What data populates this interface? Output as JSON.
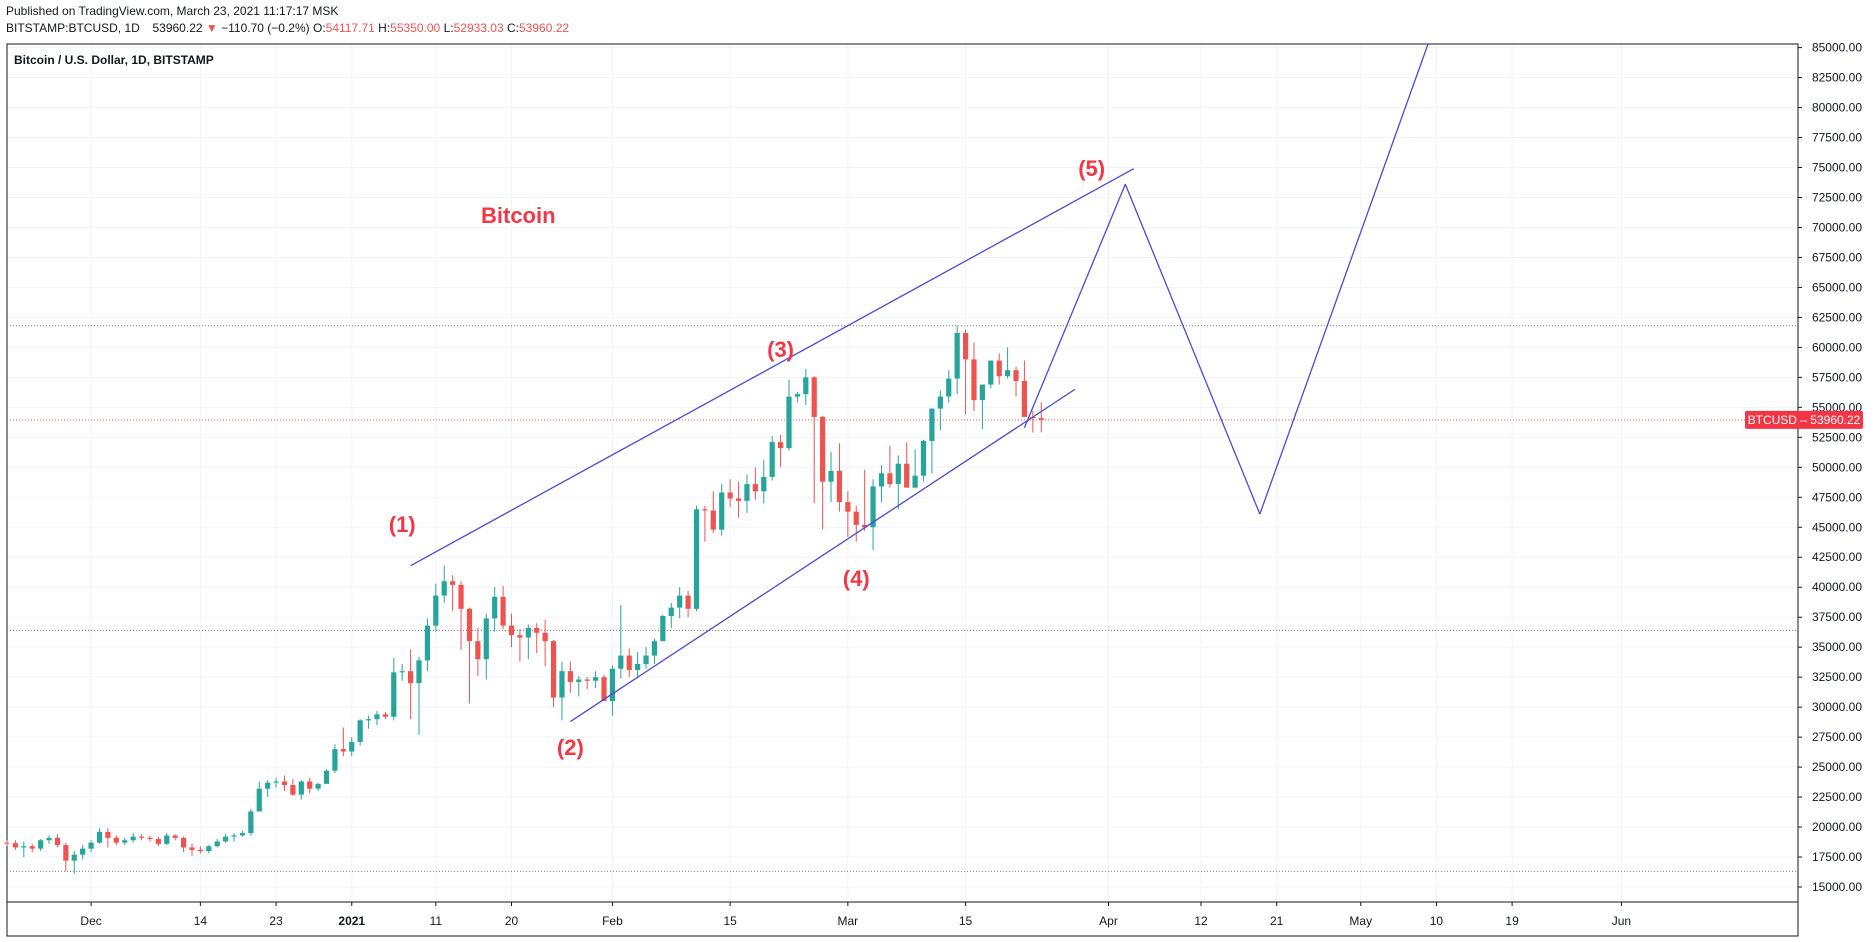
{
  "header": {
    "published": "Published on TradingView.com, March 23, 2021 11:17:17 MSK",
    "symbol": "BITSTAMP:BTCUSD, 1D",
    "last": "53960.22",
    "change": "−110.70 (−0.2%)",
    "o_label": "O:",
    "o_value": "54117.71",
    "h_label": "H:",
    "h_value": "55350.00",
    "l_label": "L:",
    "l_value": "52933.03",
    "c_label": "C:",
    "c_value": "53960.22"
  },
  "chart_symbol_label": "Bitcoin / U.S. Dollar, 1D, BITSTAMP",
  "chart_title": "Bitcoin",
  "price_tag": "BTCUSD – 53960.22",
  "colors": {
    "up": "#26a69a",
    "down": "#ef5350",
    "wave": "#f23645",
    "line": "#4a4ad6",
    "grid": "#f0f3fa",
    "tag": "#f23645"
  },
  "chart_data": {
    "type": "candlestick",
    "title": "Bitcoin",
    "ylim": [
      13750,
      85300
    ],
    "yticks": [
      15000,
      17500,
      20000,
      22500,
      25000,
      27500,
      30000,
      32500,
      35000,
      37500,
      40000,
      42500,
      45000,
      47500,
      50000,
      52500,
      55000,
      57500,
      60000,
      62500,
      65000,
      67500,
      70000,
      72500,
      75000,
      77500,
      80000,
      82500,
      85000
    ],
    "yticklabels": [
      "15000.00",
      "17500.00",
      "20000.00",
      "22500.00",
      "25000.00",
      "27500.00",
      "30000.00",
      "32500.00",
      "35000.00",
      "37500.00",
      "40000.00",
      "42500.00",
      "45000.00",
      "47500.00",
      "50000.00",
      "52500.00",
      "55000.00",
      "57500.00",
      "60000.00",
      "62500.00",
      "65000.00",
      "67500.00",
      "70000.00",
      "72500.00",
      "75000.00",
      "77500.00",
      "80000.00",
      "82500.00",
      "85000.00"
    ],
    "xlim": [
      "2020-11-21",
      "2021-06-22"
    ],
    "xticks": [
      {
        "date": "2020-12-01",
        "label": "Dec"
      },
      {
        "date": "2020-12-14",
        "label": "14"
      },
      {
        "date": "2020-12-23",
        "label": "23"
      },
      {
        "date": "2021-01-01",
        "label": "2021"
      },
      {
        "date": "2021-01-11",
        "label": "11"
      },
      {
        "date": "2021-01-20",
        "label": "20"
      },
      {
        "date": "2021-02-01",
        "label": "Feb"
      },
      {
        "date": "2021-02-15",
        "label": "15"
      },
      {
        "date": "2021-03-01",
        "label": "Mar"
      },
      {
        "date": "2021-03-15",
        "label": "15"
      },
      {
        "date": "2021-04-01",
        "label": "Apr"
      },
      {
        "date": "2021-04-12",
        "label": "12"
      },
      {
        "date": "2021-04-21",
        "label": "21"
      },
      {
        "date": "2021-05-01",
        "label": "May"
      },
      {
        "date": "2021-05-10",
        "label": "10"
      },
      {
        "date": "2021-05-19",
        "label": "19"
      },
      {
        "date": "2021-06-01",
        "label": "Jun"
      }
    ],
    "first_date": "2020-11-21",
    "candles": [
      [
        18700,
        18900,
        18400,
        18650
      ],
      [
        18650,
        18900,
        18100,
        18300
      ],
      [
        18300,
        18800,
        17500,
        18400
      ],
      [
        18400,
        18600,
        17900,
        18200
      ],
      [
        18200,
        19000,
        18000,
        18900
      ],
      [
        18900,
        19300,
        18600,
        19100
      ],
      [
        19100,
        19400,
        18300,
        18500
      ],
      [
        18500,
        18700,
        16300,
        17200
      ],
      [
        17200,
        18000,
        16100,
        17700
      ],
      [
        17700,
        18500,
        17300,
        18200
      ],
      [
        18200,
        18900,
        17900,
        18700
      ],
      [
        18700,
        19900,
        18600,
        19600
      ],
      [
        19600,
        19900,
        18300,
        19100
      ],
      [
        19100,
        19300,
        18500,
        18700
      ],
      [
        18700,
        19100,
        18500,
        18900
      ],
      [
        18900,
        19500,
        18700,
        19200
      ],
      [
        19200,
        19400,
        18900,
        19100
      ],
      [
        19100,
        19300,
        18800,
        19000
      ],
      [
        19000,
        19200,
        18400,
        18600
      ],
      [
        18600,
        19500,
        18500,
        19300
      ],
      [
        19300,
        19400,
        18900,
        19100
      ],
      [
        19100,
        19200,
        17900,
        18300
      ],
      [
        18300,
        18600,
        17600,
        18100
      ],
      [
        18100,
        18400,
        17800,
        18000
      ],
      [
        18000,
        18500,
        17800,
        18400
      ],
      [
        18400,
        19000,
        18300,
        18800
      ],
      [
        18800,
        19400,
        18700,
        19200
      ],
      [
        19200,
        19500,
        18800,
        19300
      ],
      [
        19300,
        19700,
        19200,
        19500
      ],
      [
        19500,
        21500,
        19300,
        21300
      ],
      [
        21300,
        23800,
        21300,
        23200
      ],
      [
        23200,
        23900,
        22500,
        23700
      ],
      [
        23700,
        24100,
        23300,
        23800
      ],
      [
        23800,
        24300,
        23000,
        23500
      ],
      [
        23500,
        24000,
        22600,
        22700
      ],
      [
        22700,
        23900,
        22300,
        23800
      ],
      [
        23800,
        24100,
        22800,
        23200
      ],
      [
        23200,
        23700,
        23000,
        23600
      ],
      [
        23600,
        24800,
        23600,
        24700
      ],
      [
        24700,
        26900,
        24500,
        26500
      ],
      [
        26500,
        28300,
        25900,
        26300
      ],
      [
        26300,
        27500,
        25900,
        27100
      ],
      [
        27100,
        29000,
        26800,
        28900
      ],
      [
        28900,
        29300,
        28200,
        29000
      ],
      [
        29000,
        29700,
        28500,
        29400
      ],
      [
        29400,
        29600,
        29000,
        29200
      ],
      [
        29200,
        34100,
        28900,
        32900
      ],
      [
        32900,
        33600,
        32200,
        33000
      ],
      [
        33000,
        34800,
        29000,
        32000
      ],
      [
        32000,
        34200,
        27700,
        33900
      ],
      [
        33900,
        37400,
        33000,
        36800
      ],
      [
        36800,
        40300,
        36300,
        39300
      ],
      [
        39300,
        41800,
        38700,
        40500
      ],
      [
        40500,
        41000,
        38000,
        40200
      ],
      [
        40200,
        40500,
        34800,
        38200
      ],
      [
        38200,
        38300,
        30300,
        35500
      ],
      [
        35500,
        36600,
        32600,
        34000
      ],
      [
        34000,
        37800,
        32300,
        37400
      ],
      [
        37400,
        40000,
        36300,
        39200
      ],
      [
        39200,
        40100,
        36500,
        36800
      ],
      [
        36800,
        37800,
        35000,
        36000
      ],
      [
        36000,
        36500,
        33800,
        35800
      ],
      [
        35800,
        36900,
        34000,
        36600
      ],
      [
        36600,
        37000,
        34500,
        36200
      ],
      [
        36200,
        37300,
        33400,
        35500
      ],
      [
        35500,
        35600,
        30000,
        30800
      ],
      [
        30800,
        33800,
        28900,
        33000
      ],
      [
        33000,
        33800,
        31200,
        32100
      ],
      [
        32100,
        32600,
        30900,
        32300
      ],
      [
        32300,
        32500,
        31500,
        32200
      ],
      [
        32200,
        33000,
        31600,
        32500
      ],
      [
        32500,
        32700,
        30800,
        30500
      ],
      [
        30500,
        33500,
        29300,
        33200
      ],
      [
        33200,
        38500,
        32400,
        34300
      ],
      [
        34300,
        34900,
        32500,
        33100
      ],
      [
        33100,
        34600,
        32400,
        33600
      ],
      [
        33600,
        35000,
        33200,
        34300
      ],
      [
        34300,
        35700,
        33600,
        35500
      ],
      [
        35500,
        37700,
        35500,
        37600
      ],
      [
        37600,
        38700,
        36600,
        38300
      ],
      [
        38300,
        40000,
        37400,
        39300
      ],
      [
        39300,
        39700,
        37500,
        38200
      ],
      [
        38200,
        46800,
        38000,
        46500
      ],
      [
        46500,
        46800,
        43800,
        46400
      ],
      [
        46400,
        48000,
        44500,
        44800
      ],
      [
        44800,
        48600,
        44300,
        47900
      ],
      [
        47900,
        49000,
        46700,
        47400
      ],
      [
        47400,
        48800,
        45800,
        47200
      ],
      [
        47200,
        49400,
        46200,
        48600
      ],
      [
        48600,
        50000,
        47300,
        48000
      ],
      [
        48000,
        50600,
        47000,
        49200
      ],
      [
        49200,
        52600,
        48900,
        52100
      ],
      [
        52100,
        52700,
        50000,
        51600
      ],
      [
        51600,
        57300,
        51400,
        55900
      ],
      [
        55900,
        56300,
        55400,
        56100
      ],
      [
        56100,
        58200,
        55200,
        57500
      ],
      [
        57500,
        57600,
        47000,
        54200
      ],
      [
        54200,
        54300,
        44800,
        48800
      ],
      [
        48800,
        51300,
        47100,
        49700
      ],
      [
        49700,
        52000,
        46300,
        47100
      ],
      [
        47100,
        48000,
        44200,
        46300
      ],
      [
        46300,
        46800,
        43800,
        45200
      ],
      [
        45200,
        49800,
        44700,
        45000
      ],
      [
        45000,
        49000,
        43100,
        48400
      ],
      [
        48400,
        50200,
        47100,
        49500
      ],
      [
        49500,
        51800,
        48300,
        48600
      ],
      [
        48600,
        51000,
        46500,
        50300
      ],
      [
        50300,
        52100,
        48800,
        48300
      ],
      [
        48300,
        51500,
        48500,
        49300
      ],
      [
        49300,
        52300,
        48800,
        52200
      ],
      [
        52200,
        54800,
        49500,
        54900
      ],
      [
        54900,
        56400,
        53100,
        55900
      ],
      [
        55900,
        58100,
        55400,
        57400
      ],
      [
        57400,
        61800,
        56100,
        61200
      ],
      [
        61200,
        61500,
        54400,
        59000
      ],
      [
        59000,
        60400,
        54700,
        55600
      ],
      [
        55600,
        56700,
        53200,
        56900
      ],
      [
        56900,
        58900,
        56600,
        58900
      ],
      [
        58900,
        59500,
        56900,
        57600
      ],
      [
        57600,
        60000,
        57400,
        58100
      ],
      [
        58100,
        58400,
        55900,
        57200
      ],
      [
        57200,
        58900,
        54500,
        54200
      ],
      [
        54200,
        54700,
        52900,
        54100
      ],
      [
        54100,
        55400,
        52900,
        53960
      ]
    ],
    "levels": [
      61800,
      36400,
      16300
    ],
    "level_current": 53960.22,
    "lines": [
      {
        "from": [
          "2021-01-08",
          41800
        ],
        "to": [
          "2021-04-04",
          74900
        ]
      },
      {
        "from": [
          "2021-01-27",
          28800
        ],
        "to": [
          "2021-03-28",
          56500
        ]
      },
      {
        "from": [
          "2021-03-22",
          53300
        ],
        "to": [
          "2021-04-03",
          73600
        ]
      },
      {
        "from": [
          "2021-04-03",
          73600
        ],
        "to": [
          "2021-04-19",
          46100
        ]
      },
      {
        "from": [
          "2021-04-19",
          46100
        ],
        "to": [
          "2021-05-09",
          85300
        ]
      }
    ],
    "waves": [
      {
        "label": "(1)",
        "date": "2021-01-07",
        "price": 44600
      },
      {
        "label": "(2)",
        "date": "2021-01-27",
        "price": 26000
      },
      {
        "label": "(3)",
        "date": "2021-02-21",
        "price": 59200
      },
      {
        "label": "(4)",
        "date": "2021-03-02",
        "price": 40100
      },
      {
        "label": "(5)",
        "date": "2021-03-30",
        "price": 74300
      }
    ]
  }
}
